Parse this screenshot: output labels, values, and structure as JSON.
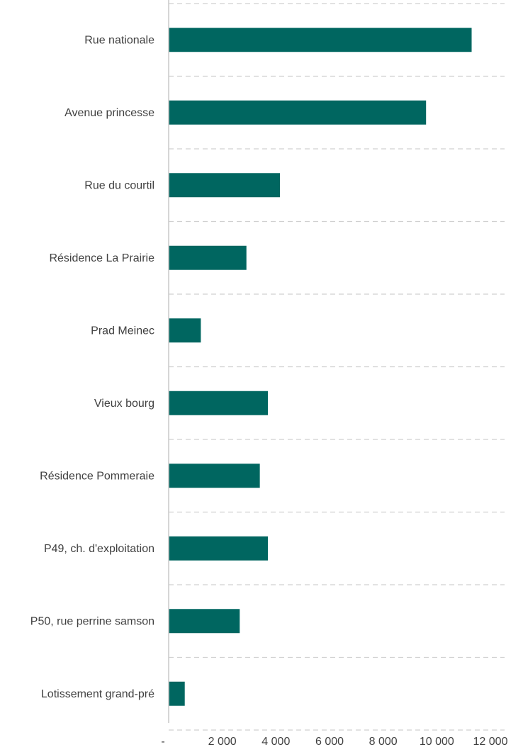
{
  "chart_data": {
    "type": "bar",
    "orientation": "horizontal",
    "categories": [
      "Rue nationale",
      "Avenue princesse",
      "Rue du courtil",
      "Résidence La Prairie",
      "Prad Meinec",
      "Vieux bourg",
      "Résidence Pommeraie",
      "P49, ch. d'exploitation",
      "P50, rue perrine samson",
      "Lotissement grand-pré"
    ],
    "values": [
      11300,
      9600,
      4150,
      2900,
      1200,
      3700,
      3400,
      3700,
      2650,
      600
    ],
    "xlim": [
      0,
      12000
    ],
    "x_ticks": [
      0,
      2000,
      4000,
      6000,
      8000,
      10000,
      12000
    ],
    "x_tick_labels": [
      "-",
      "2 000",
      "4 000",
      "6 000",
      "8 000",
      "10 000",
      "12 000"
    ],
    "title": "",
    "xlabel": "",
    "ylabel": "",
    "grid": "horizontal dashed separators between categories",
    "legend": "none",
    "colors": {
      "bar": "#006660",
      "grid": "#d0d0d0",
      "axis": "#c8c8c8",
      "text": "#404040"
    }
  }
}
